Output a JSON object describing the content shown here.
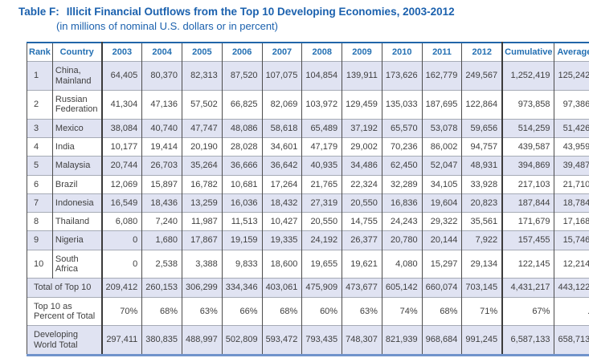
{
  "title": {
    "label": "Table F:",
    "text": "Illicit Financial Outflows from the Top 10 Developing Economies, 2003-2012",
    "subtitle": "(in millions of nominal U.S. dollars or in percent)"
  },
  "table": {
    "columns": [
      "Rank",
      "Country",
      "2003",
      "2004",
      "2005",
      "2006",
      "2007",
      "2008",
      "2009",
      "2010",
      "2011",
      "2012",
      "Cumulative",
      "Average"
    ],
    "country_rows": [
      {
        "rank": "1",
        "country": "China, Mainland",
        "values": [
          "64,405",
          "80,370",
          "82,313",
          "87,520",
          "107,075",
          "104,854",
          "139,911",
          "173,626",
          "162,779",
          "249,567",
          "1,252,419",
          "125,242"
        ]
      },
      {
        "rank": "2",
        "country": "Russian Federation",
        "values": [
          "41,304",
          "47,136",
          "57,502",
          "66,825",
          "82,069",
          "103,972",
          "129,459",
          "135,033",
          "187,695",
          "122,864",
          "973,858",
          "97,386"
        ]
      },
      {
        "rank": "3",
        "country": "Mexico",
        "values": [
          "38,084",
          "40,740",
          "47,747",
          "48,086",
          "58,618",
          "65,489",
          "37,192",
          "65,570",
          "53,078",
          "59,656",
          "514,259",
          "51,426"
        ]
      },
      {
        "rank": "4",
        "country": "India",
        "values": [
          "10,177",
          "19,414",
          "20,190",
          "28,028",
          "34,601",
          "47,179",
          "29,002",
          "70,236",
          "86,002",
          "94,757",
          "439,587",
          "43,959"
        ]
      },
      {
        "rank": "5",
        "country": "Malaysia",
        "values": [
          "20,744",
          "26,703",
          "35,264",
          "36,666",
          "36,642",
          "40,935",
          "34,486",
          "62,450",
          "52,047",
          "48,931",
          "394,869",
          "39,487"
        ]
      },
      {
        "rank": "6",
        "country": "Brazil",
        "values": [
          "12,069",
          "15,897",
          "16,782",
          "10,681",
          "17,264",
          "21,765",
          "22,324",
          "32,289",
          "34,105",
          "33,928",
          "217,103",
          "21,710"
        ]
      },
      {
        "rank": "7",
        "country": "Indonesia",
        "values": [
          "16,549",
          "18,436",
          "13,259",
          "16,036",
          "18,432",
          "27,319",
          "20,550",
          "16,836",
          "19,604",
          "20,823",
          "187,844",
          "18,784"
        ]
      },
      {
        "rank": "8",
        "country": "Thailand",
        "values": [
          "6,080",
          "7,240",
          "11,987",
          "11,513",
          "10,427",
          "20,550",
          "14,755",
          "24,243",
          "29,322",
          "35,561",
          "171,679",
          "17,168"
        ]
      },
      {
        "rank": "9",
        "country": "Nigeria",
        "values": [
          "0",
          "1,680",
          "17,867",
          "19,159",
          "19,335",
          "24,192",
          "26,377",
          "20,780",
          "20,144",
          "7,922",
          "157,455",
          "15,746"
        ]
      },
      {
        "rank": "10",
        "country": "South Africa",
        "values": [
          "0",
          "2,538",
          "3,388",
          "9,833",
          "18,600",
          "19,655",
          "19,621",
          "4,080",
          "15,297",
          "29,134",
          "122,145",
          "12,214"
        ]
      }
    ],
    "summary_rows": [
      {
        "label": "Total of Top 10",
        "values": [
          "209,412",
          "260,153",
          "306,299",
          "334,346",
          "403,061",
          "475,909",
          "473,677",
          "605,142",
          "660,074",
          "703,145",
          "4,431,217",
          "443,122"
        ]
      },
      {
        "label": "Top 10 as Percent of Total",
        "values": [
          "70%",
          "68%",
          "63%",
          "66%",
          "68%",
          "60%",
          "63%",
          "74%",
          "68%",
          "71%",
          "67%",
          "."
        ]
      },
      {
        "label": "Developing World Total",
        "values": [
          "297,411",
          "380,835",
          "488,997",
          "502,809",
          "593,472",
          "793,435",
          "748,307",
          "821,939",
          "968,684",
          "991,245",
          "6,587,133",
          "658,713"
        ]
      }
    ]
  },
  "colors": {
    "title_blue": "#1b61ae",
    "header_blue": "#2470b3",
    "row_shade": "#e0e3f2",
    "top_rule": "#2166a9",
    "bottom_rule": "#7093cb"
  }
}
